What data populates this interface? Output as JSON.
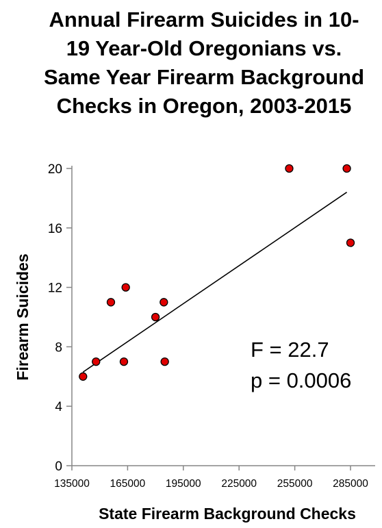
{
  "chart_data": {
    "type": "scatter",
    "title_lines": [
      "Annual Firearm Suicides in 10-",
      "19 Year-Old Oregonians vs.",
      "Same Year Firearm Background",
      "Checks in Oregon, 2003-2015"
    ],
    "xlabel": "State Firearm Background Checks",
    "ylabel": "Firearm Suicides",
    "xlim": [
      135000,
      285000
    ],
    "ylim": [
      0,
      20
    ],
    "x_ticks": [
      "135000",
      "165000",
      "195000",
      "225000",
      "255000",
      "285000"
    ],
    "y_ticks": [
      "0",
      "4",
      "8",
      "12",
      "16",
      "20"
    ],
    "points": [
      {
        "x": 141000,
        "y": 6
      },
      {
        "x": 148000,
        "y": 7
      },
      {
        "x": 163000,
        "y": 7
      },
      {
        "x": 156000,
        "y": 11
      },
      {
        "x": 164000,
        "y": 12
      },
      {
        "x": 180000,
        "y": 10
      },
      {
        "x": 184500,
        "y": 11
      },
      {
        "x": 185000,
        "y": 7
      },
      {
        "x": 252000,
        "y": 20
      },
      {
        "x": 283000,
        "y": 20
      },
      {
        "x": 285000,
        "y": 15
      }
    ],
    "trendline": {
      "x1": 141000,
      "y1": 6.3,
      "x2": 283000,
      "y2": 18.4
    },
    "marker_color": "#e00000",
    "annotations": [
      "F = 22.7",
      "p = 0.0006"
    ]
  }
}
